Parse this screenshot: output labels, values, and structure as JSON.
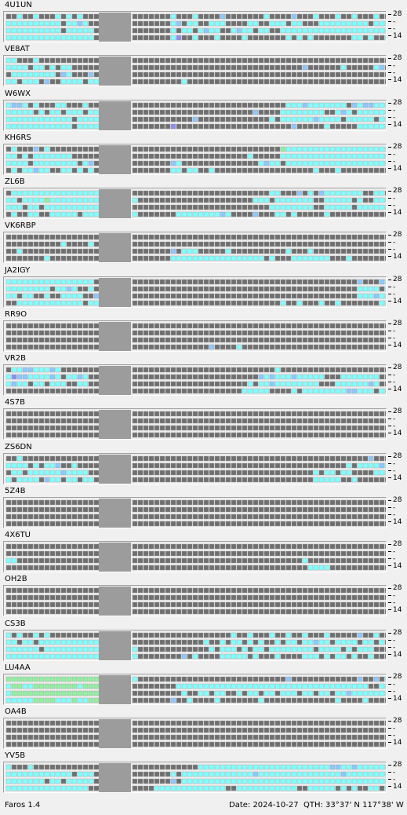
{
  "app": {
    "name": "Faros 1.4",
    "date_label": "Date: 2024-10-27",
    "qth_label": "QTH: 33°37' N  117°38' W"
  },
  "band_scale": {
    "top": "28",
    "mid": "-",
    "bottom": "14"
  },
  "colors": {
    "no_data": "#6f6f6f",
    "cell_outline": "#a3a3a3",
    "cyan": "#80ffff",
    "teal": "#7be0dc",
    "periwinkle": "#8c8cf0",
    "light_blue": "#8cc8ff",
    "green": "#90f0a0",
    "gap_column": "#9c9c9c"
  },
  "beacons": [
    {
      "callsign": "4U1UN",
      "rows": [
        "..c..c...c.c.c..........c...c....b.......c....b...c...c..c...c.....c.....",
        "cccccccccc.ccbc.........cb.cc..ccc....cc..ccc.cc...ccccccccc.cccccccccccc",
        "cccccccccc.ccccc........c.cc.cbcc..cbcc.cc..ccccccccccccccccccccccccccccc",
        "cccccccccccccccc........cp..c...c....c.......c.c.c.......cc.c..c...c.c.c."
      ]
    },
    {
      "callsign": "VE8AT",
      "rows": [
        "cc...c..................................................................",
        "cccc.cc.c.cc....................................b......c.....cb....b.....",
        ".cccccccc.bc...b...................................................c.....",
        "cc.ccc.b..cccc.cc.........c............................................."
      ]
    },
    {
      "callsign": "W6WX",
      "rows": [
        "cbbc.c...cc...c..............................cccbccccccc.bcbbcccccccccccc",
        "ccccc.c.cc.ccc.cc......................b....cccccccc..cbc.ccccccccccccccc",
        "cccccccccccc.cccc...........b.............c.ccccccbcccc.ccccc.ccccccccccc",
        "cccccccccccc.cccc.......p.....................b.....c.....ccccccccc.cc..c"
      ]
    },
    {
      "callsign": "KH6RS",
      "rows": [
        ".c...b.c....................................gcccccccccccccccccccccccccc",
        "cc.c.ccccccc..........................c.....cccccccccccccccccccccccccccc",
        "cccc.cccccccc.cb........bc..............cbcc.ccccccccccccccccccccccccccc",
        ".c.ccbcc..cc.c.c........cc.cc..c..................c...c.........c......."
      ]
    },
    {
      "callsign": "ZL6B",
      "rows": [
        ".cccccccccccccccc.........................cc...b.c.bccccccc..cc.bccccc",
        "cc.ccccgcccccccccc.....................ccc.ccccccc..ccccc.c..ccc.cc.c.",
        "ccc.cc.cccccccccc.........................cccccccc..ccccc.cccccccc.c..",
        ".c..cc..ccccc.cccc.......ccccccccbc....b...cc.c.....c...........c...c."
      ]
    },
    {
      "callsign": "VK6RBP",
      "rows": [
        ".............................................................",
        "..........c....c.............................................",
        "..c.....................b.ccc.....c..........c...c............",
        ".......c................ccccccccccccccccc.c...ccccccc...c........."
      ]
    },
    {
      "callsign": "JA2IGY",
      "rows": [
        "cccccccccccccccc..........................................b...bcccccccccc",
        "cccccccc.ccbc..c..........................................cccc.cccbccccc",
        "cc.cc..c..cccc..b.........................................cccbcccccccccc.",
        "..cccccccccccc.cc...........................c..c...c..c.......cc..c......"
      ]
    },
    {
      "callsign": "RR9O",
      "rows": [
        ".....................................................................",
        ".....................................................................",
        ".....................................................................",
        "...............................b....c................................"
      ]
    },
    {
      "callsign": "VR2B",
      "rows": [
        ".ccbbcccbc.................................c............................c",
        "cpbbccccbc.ccbc.........................bcbcccbccccc...ccccccc....cc.ccc",
        "cbcc.cc.ccc..cc.......................c.ccbcccccccc...ccccccbc..ccccbccc",
        ".....................................ccccc....c.ccccccccbbccc.ccccc......"
      ]
    },
    {
      "callsign": "4S7B",
      "rows": [
        ".....................................................................",
        ".....................................................................",
        ".....................................................................",
        "....................................................................."
      ]
    },
    {
      "callsign": "ZS6DN",
      "rows": [
        "..c.........................................................b..........",
        "cccc.c.ccb..c...........................................c.ccccbcccc....",
        ".cc.ccccccbcccc...................................c.cc.cc....cccccc.....",
        "c.cccc.bcc.cc.cc..................................ccccc..c..............."
      ]
    },
    {
      "callsign": "5Z4B",
      "rows": [
        ".....................................................................",
        ".....................................................................",
        ".....................................................................",
        "....................................................................."
      ]
    },
    {
      "callsign": "4X6TU",
      "rows": [
        ".....................................................................",
        ".....................................................................",
        "cc..............................................c....................",
        ".................................................cccc................."
      ]
    },
    {
      "callsign": "OH2B",
      "rows": [
        ".....................................................................",
        ".....................................................................",
        ".....................................................................",
        "....................................................................."
      ]
    },
    {
      "callsign": "CS3B",
      "rows": [
        "c.c..c.c...........................c..c...c..c..c...c.....b..c.......",
        "cc.cc.ccccccccccc.............c..c.cc.c.c..c.cc.ccbcc.cccc.cc.c........",
        "cccccc.ccccccccccc.............c.ccc.c.cc.cccccccc.cccc.c.ccc...........",
        "cccccccccccccccccc........b.c....ccccc.c...c....ccc.c.cc.c..c.........."
      ]
    },
    {
      "callsign": "LU4AA",
      "rows": [
        "gggggggggggggggggc...........................b............b..b.cgcccccc",
        "cggccggggggggcggg........ccccccccccccccccccccccccccccccccccc..cccccbcc",
        "cgggggggggggggggg.........c..cc.cc..c.cc.cc.ccc.cc.cc.ccbcccccccccccbcc",
        "cccccggggcccgccgg.......b..c....c.......c.............c....c....ccccccc"
      ]
    },
    {
      "callsign": "OA4B",
      "rows": [
        ".....................................................................",
        ".....................................................................",
        ".....................................................................",
        "....................................................................."
      ]
    },
    {
      "callsign": "YV5B",
      "rows": [
        "c...c........................ccccccccccccccccccccccccbbccbccccccccccccc",
        "cccccccccccc.ccc........c.cccccccccccccbcccccccccccccccbccccccccccccccc",
        "ccccccc.cc.ccccc........b.ccccccccccccccccccccccccccccccccccccccccccccc",
        "ccccccccccccccc......ccccccccccccc..ccccccccccc..ccccc.c.c..cc.cccccccc"
      ]
    }
  ]
}
